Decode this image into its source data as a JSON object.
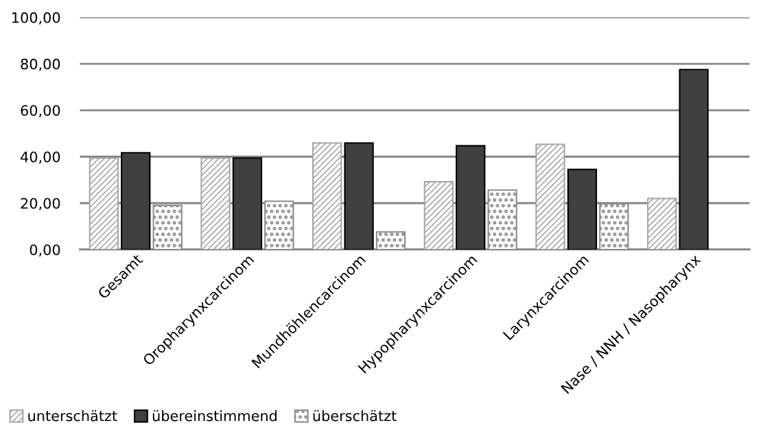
{
  "chart_data": {
    "type": "bar",
    "categories": [
      "Gesamt",
      "Oropharynxcarcinom",
      "Mundhöhlencarcinom",
      "Hypopharynxcarcinom",
      "Larynxcarcinom",
      "Nase / NNH / Nasopharynx"
    ],
    "series": [
      {
        "name": "unterschätzt",
        "color": "#a6a6a6",
        "values": [
          39.4,
          39.4,
          45.9,
          29.2,
          45.3,
          22.0
        ]
      },
      {
        "name": "übereinstimmend",
        "color": "#404040",
        "values": [
          41.7,
          39.4,
          45.9,
          44.7,
          34.5,
          77.5
        ]
      },
      {
        "name": "überschätzt",
        "color": "#8c8c8c",
        "values": [
          19.0,
          20.8,
          7.6,
          25.6,
          19.7,
          0
        ]
      }
    ],
    "ylim": [
      0,
      100
    ],
    "yticks": [
      {
        "value": 0,
        "label": "0,00"
      },
      {
        "value": 20,
        "label": "20,00"
      },
      {
        "value": 40,
        "label": "40,00"
      },
      {
        "value": 60,
        "label": "60,00"
      },
      {
        "value": 80,
        "label": "80,00"
      },
      {
        "value": 100,
        "label": "100,00"
      }
    ],
    "grid": "y",
    "legend": "bottom left"
  }
}
